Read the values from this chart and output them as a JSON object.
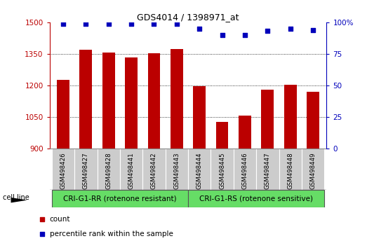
{
  "title": "GDS4014 / 1398971_at",
  "samples": [
    "GSM498426",
    "GSM498427",
    "GSM498428",
    "GSM498441",
    "GSM498442",
    "GSM498443",
    "GSM498444",
    "GSM498445",
    "GSM498446",
    "GSM498447",
    "GSM498448",
    "GSM498449"
  ],
  "counts": [
    1228,
    1370,
    1358,
    1335,
    1353,
    1373,
    1196,
    1028,
    1057,
    1182,
    1205,
    1172
  ],
  "percentile_ranks": [
    99,
    99,
    99,
    99,
    99,
    99,
    95,
    90,
    90,
    93,
    95,
    94
  ],
  "bar_color": "#bb0000",
  "dot_color": "#0000bb",
  "ylim_left": [
    900,
    1500
  ],
  "ylim_right": [
    0,
    100
  ],
  "yticks_left": [
    900,
    1050,
    1200,
    1350,
    1500
  ],
  "yticks_right": [
    0,
    25,
    50,
    75,
    100
  ],
  "group1_label": "CRI-G1-RR (rotenone resistant)",
  "group2_label": "CRI-G1-RS (rotenone sensitive)",
  "group1_count": 6,
  "group2_count": 6,
  "cell_line_label": "cell line",
  "legend_count_label": "count",
  "legend_percentile_label": "percentile rank within the sample",
  "group_bg_color": "#66dd66",
  "sample_bg_color": "#cccccc",
  "right_axis_color": "#0000bb",
  "left_axis_color": "#bb0000"
}
